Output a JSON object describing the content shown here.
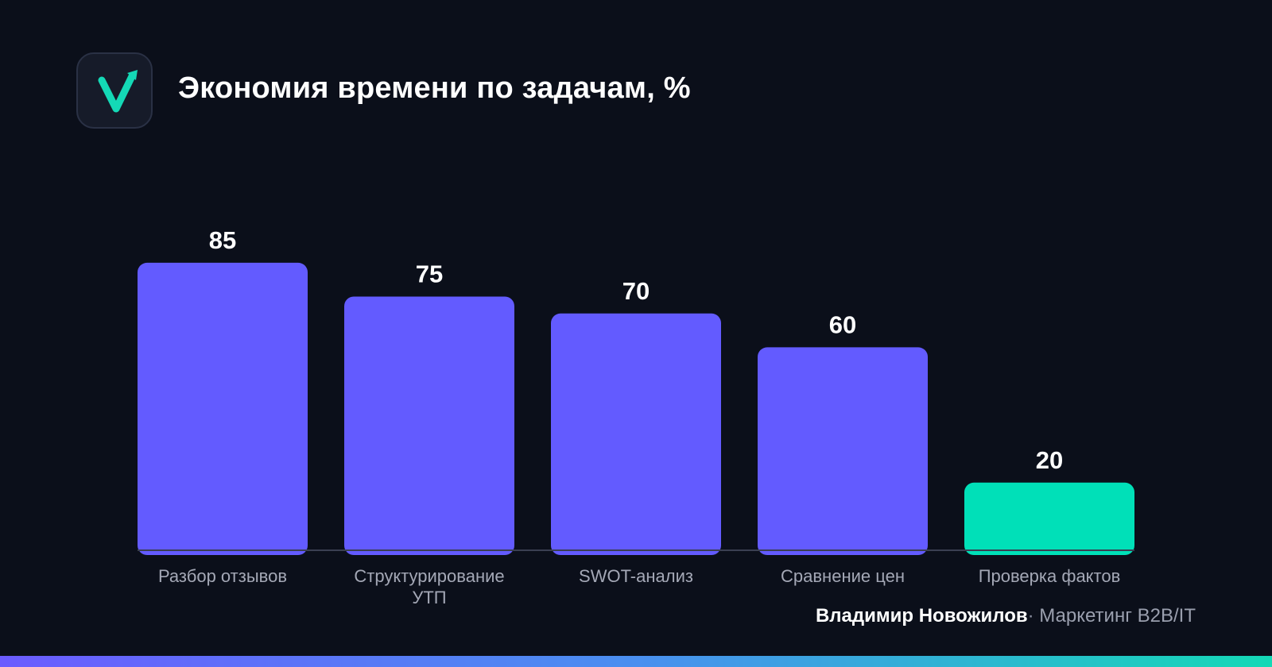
{
  "header": {
    "title": "Экономия времени по задачам, %",
    "logo_icon": "check-arrow-icon"
  },
  "chart_data": {
    "type": "bar",
    "title": "Экономия времени по задачам, %",
    "categories": [
      [
        "Разбор отзывов"
      ],
      [
        "Структурирование",
        "УТП"
      ],
      [
        "SWOT-анализ"
      ],
      [
        "Сравнение цен"
      ],
      [
        "Проверка фактов"
      ]
    ],
    "values": [
      85,
      75,
      70,
      60,
      20
    ],
    "bar_colors": [
      "#635bff",
      "#635bff",
      "#635bff",
      "#635bff",
      "#00e0b8"
    ],
    "ylim": [
      0,
      100
    ],
    "grid": false,
    "legend": "none"
  },
  "footer": {
    "author": "Владимир Новожилов",
    "separator": "·",
    "role": "Маркетинг B2B/IT"
  },
  "colors": {
    "background": "#0b0f1a",
    "accent": "#635bff",
    "highlight": "#00e0b8",
    "axis": "#3a3f52",
    "label": "#a4a8b6"
  }
}
